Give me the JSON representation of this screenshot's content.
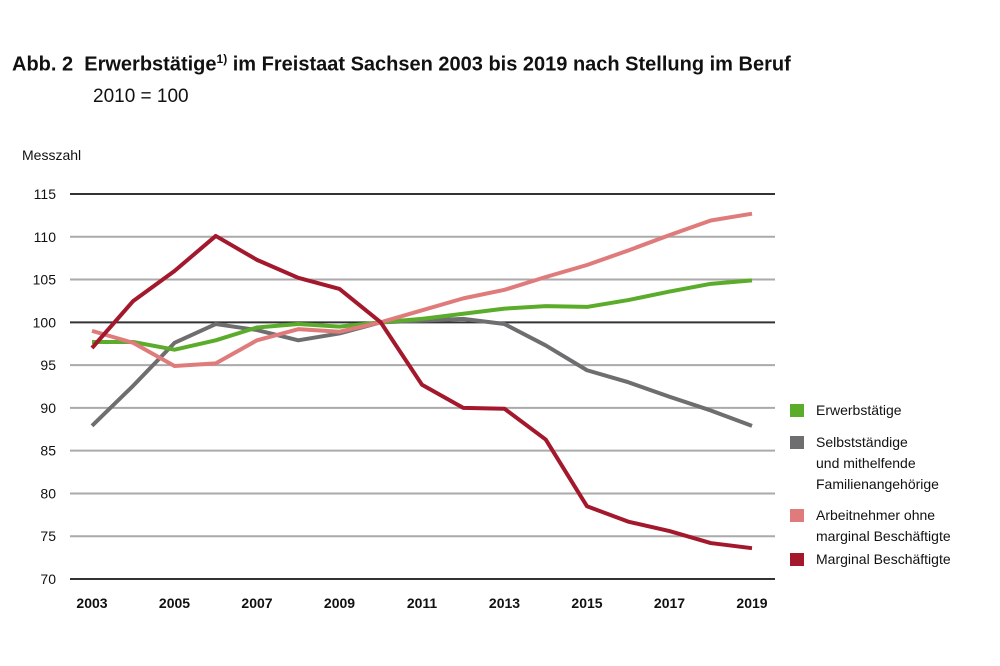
{
  "title": {
    "prefix": "Abb. 2",
    "main": "Erwerbstätige",
    "footnote_mark": "1)",
    "rest": "im Freistaat Sachsen 2003 bis 2019 nach Stellung im Beruf",
    "subtitle": "2010 = 100"
  },
  "chart_data": {
    "type": "line",
    "ylabel": "Messzahl",
    "ylim": [
      70,
      115
    ],
    "yticks": [
      70,
      75,
      80,
      85,
      90,
      95,
      100,
      105,
      110,
      115
    ],
    "x": [
      2003,
      2004,
      2005,
      2006,
      2007,
      2008,
      2009,
      2010,
      2011,
      2012,
      2013,
      2014,
      2015,
      2016,
      2017,
      2018,
      2019
    ],
    "xticks": [
      2003,
      2005,
      2007,
      2009,
      2011,
      2013,
      2015,
      2017,
      2019
    ],
    "grid": true,
    "legend_position": "right",
    "series": [
      {
        "name": "Erwerbstätige",
        "color": "#5aac2a",
        "values": [
          97.7,
          97.7,
          96.8,
          97.9,
          99.4,
          99.8,
          99.5,
          100,
          100.4,
          101.0,
          101.6,
          101.9,
          101.8,
          102.6,
          103.6,
          104.5,
          104.9
        ]
      },
      {
        "name": "Selbstständige und mithelfende Familienangehörige",
        "legend_lines": [
          "Selbstständige",
          "und mithelfende",
          "Familienangehörige"
        ],
        "color": "#6e6e70",
        "values": [
          87.9,
          92.6,
          97.6,
          99.8,
          99.1,
          97.9,
          98.7,
          100,
          100.2,
          100.4,
          99.8,
          97.3,
          94.4,
          93.0,
          91.3,
          89.7,
          87.9
        ]
      },
      {
        "name": "Arbeitnehmer ohne marginal Beschäftigte",
        "legend_lines": [
          "Arbeitnehmer ohne",
          "marginal Beschäftigte"
        ],
        "color": "#e07b7b",
        "values": [
          99.0,
          97.6,
          94.9,
          95.2,
          97.9,
          99.2,
          98.9,
          100,
          101.4,
          102.8,
          103.8,
          105.3,
          106.7,
          108.4,
          110.2,
          111.9,
          112.7
        ]
      },
      {
        "name": "Marginal Beschäftigte",
        "legend_lines": [
          "Marginal Beschäftigte"
        ],
        "color": "#a3182c",
        "values": [
          97.0,
          102.5,
          106.0,
          110.1,
          107.3,
          105.2,
          103.9,
          100,
          92.7,
          90.0,
          89.9,
          86.3,
          78.5,
          76.7,
          75.6,
          74.2,
          73.6
        ]
      }
    ]
  }
}
